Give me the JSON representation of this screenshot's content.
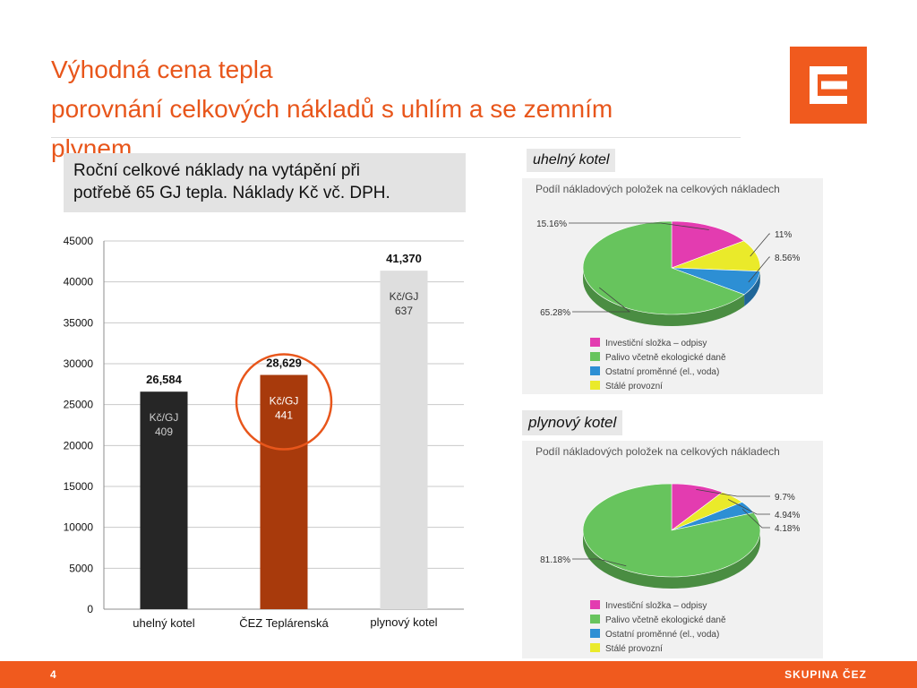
{
  "slide": {
    "title_line1": "Výhodná cena tepla",
    "title_line2": "porovnání celkových nákladů s uhlím a se zemním",
    "title_line3": "plynem",
    "note_line1": "Roční celkové náklady na vytápění při",
    "note_line2": "potřebě 65 GJ tepla. Náklady Kč vč. DPH.",
    "section_coal": "uhelný kotel",
    "section_gas": "plynový kotel",
    "page_number": "4",
    "brand": "SKUPINA ČEZ"
  },
  "chart_data": [
    {
      "type": "bar",
      "categories": [
        "uhelný kotel",
        "ČEZ Teplárenská",
        "plynový kotel"
      ],
      "values": [
        26584,
        28629,
        41370
      ],
      "value_labels": [
        "26,584",
        "28,629",
        "41,370"
      ],
      "unit_labels": [
        "Kč/GJ",
        "Kč/GJ",
        "Kč/GJ"
      ],
      "unit_values": [
        "409",
        "441",
        "637"
      ],
      "colors": [
        "#262626",
        "#a83a0c",
        "#dedede"
      ],
      "unit_text_colors": [
        "#cfcfcf",
        "#ffffff",
        "#333333"
      ],
      "ylim": [
        0,
        45000
      ],
      "yticks": [
        0,
        5000,
        10000,
        15000,
        20000,
        25000,
        30000,
        35000,
        40000,
        45000
      ],
      "grid": true,
      "highlight": "ČEZ Teplárenská",
      "highlight_color": "#e8561b"
    },
    {
      "type": "pie",
      "title": "Podíl nákladových položek na celkových nákladech",
      "labels": [
        "Investiční složka – odpisy",
        "Palivo včetně ekologické daně",
        "Ostatní proměnné (el., voda)",
        "Stálé provozní"
      ],
      "values": [
        15.16,
        65.28,
        8.56,
        11
      ],
      "value_labels": [
        "15.16%",
        "65.28%",
        "8.56%",
        "11%"
      ],
      "colors": [
        "#e33cb0",
        "#67c45d",
        "#2d8fd4",
        "#eaea2a"
      ],
      "legend": "bottom"
    },
    {
      "type": "pie",
      "title": "Podíl nákladových položek na celkových nákladech",
      "labels": [
        "Investiční složka – odpisy",
        "Palivo včetně ekologické daně",
        "Ostatní proměnné (el., voda)",
        "Stálé provozní"
      ],
      "values": [
        9.7,
        81.18,
        4.18,
        4.94
      ],
      "value_labels": [
        "9.7%",
        "81.18%",
        "4.18%",
        "4.94%"
      ],
      "colors": [
        "#e33cb0",
        "#67c45d",
        "#2d8fd4",
        "#eaea2a"
      ],
      "legend": "bottom"
    }
  ]
}
